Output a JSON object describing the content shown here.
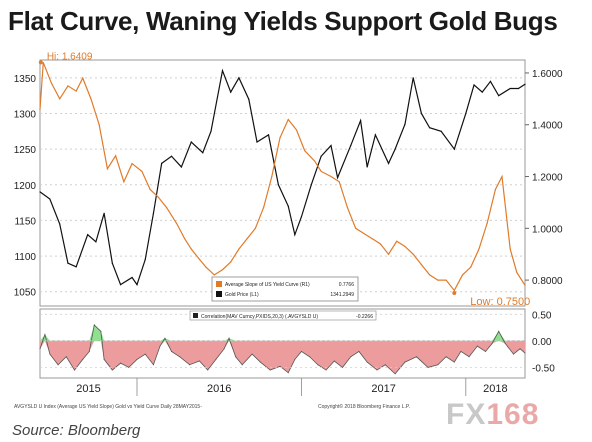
{
  "title": "Flat Curve, Waning Yields Support Gold Bugs",
  "source": "Source: Bloomberg",
  "footer_left": "AVGYSLD U Index (Average US Yield Slope) Gold vs Yield Curve  Daily 28MAY2015-",
  "footer_right": "Copyright© 2018 Bloomberg Finance L.P.",
  "watermark": {
    "prefix": "FX",
    "suffix": "168"
  },
  "colors": {
    "gold": "#111111",
    "slope": "#e07b2a",
    "corr_neg": "#ec9c9c",
    "corr_pos": "#8fe08f",
    "corr_line": "#555555",
    "grid": "#d0d0d0"
  },
  "chart_data": [
    {
      "type": "line",
      "xlim": [
        2015.41,
        2018.36
      ],
      "x_ticks": [
        {
          "x": 2015.0,
          "label": "2015"
        },
        {
          "x": 2016.0,
          "label": "2016"
        },
        {
          "x": 2017.0,
          "label": "2017"
        },
        {
          "x": 2018.0,
          "label": "2018"
        }
      ],
      "left_axis": {
        "range": [
          1030,
          1375
        ],
        "ticks": [
          1050,
          1100,
          1150,
          1200,
          1250,
          1300,
          1350
        ]
      },
      "right_axis": {
        "range": [
          0.7,
          1.65
        ],
        "ticks": [
          "0.8000",
          "1.0000",
          "1.2000",
          "1.4000",
          "1.6000"
        ]
      },
      "legend": {
        "placement": "bottom-center",
        "entries": [
          {
            "label": "Average Slope of US Yield Curve  (R1)",
            "value": "0.7766"
          },
          {
            "label": "Gold Price  (L1)",
            "value": "1341.2949"
          }
        ]
      },
      "series": [
        {
          "name": "Gold Price  (L1)",
          "axis": "left",
          "points": [
            [
              2015.41,
              1190
            ],
            [
              2015.47,
              1180
            ],
            [
              2015.53,
              1145
            ],
            [
              2015.58,
              1090
            ],
            [
              2015.63,
              1085
            ],
            [
              2015.7,
              1130
            ],
            [
              2015.75,
              1120
            ],
            [
              2015.8,
              1160
            ],
            [
              2015.85,
              1090
            ],
            [
              2015.9,
              1060
            ],
            [
              2015.97,
              1070
            ],
            [
              2016.0,
              1060
            ],
            [
              2016.05,
              1095
            ],
            [
              2016.1,
              1160
            ],
            [
              2016.15,
              1230
            ],
            [
              2016.21,
              1240
            ],
            [
              2016.27,
              1225
            ],
            [
              2016.33,
              1260
            ],
            [
              2016.4,
              1245
            ],
            [
              2016.45,
              1275
            ],
            [
              2016.52,
              1360
            ],
            [
              2016.57,
              1330
            ],
            [
              2016.62,
              1350
            ],
            [
              2016.68,
              1320
            ],
            [
              2016.73,
              1260
            ],
            [
              2016.8,
              1270
            ],
            [
              2016.86,
              1200
            ],
            [
              2016.92,
              1170
            ],
            [
              2016.96,
              1130
            ],
            [
              2017.0,
              1155
            ],
            [
              2017.06,
              1200
            ],
            [
              2017.12,
              1240
            ],
            [
              2017.18,
              1255
            ],
            [
              2017.22,
              1210
            ],
            [
              2017.3,
              1255
            ],
            [
              2017.36,
              1290
            ],
            [
              2017.4,
              1225
            ],
            [
              2017.45,
              1270
            ],
            [
              2017.53,
              1230
            ],
            [
              2017.57,
              1250
            ],
            [
              2017.63,
              1285
            ],
            [
              2017.68,
              1350
            ],
            [
              2017.73,
              1300
            ],
            [
              2017.78,
              1280
            ],
            [
              2017.85,
              1275
            ],
            [
              2017.93,
              1250
            ],
            [
              2018.0,
              1300
            ],
            [
              2018.05,
              1340
            ],
            [
              2018.1,
              1330
            ],
            [
              2018.15,
              1345
            ],
            [
              2018.2,
              1325
            ],
            [
              2018.27,
              1335
            ],
            [
              2018.32,
              1335
            ],
            [
              2018.36,
              1341
            ]
          ]
        },
        {
          "name": "Average Slope of US Yield Curve  (R1)",
          "axis": "right",
          "annotations": [
            {
              "label": "Hi: 1.6409",
              "x": 2015.415,
              "y": 1.6409
            },
            {
              "label": "Low: 0.7500",
              "x": 2017.93,
              "y": 0.75
            }
          ],
          "points": [
            [
              2015.41,
              1.46
            ],
            [
              2015.43,
              1.64
            ],
            [
              2015.48,
              1.56
            ],
            [
              2015.53,
              1.5
            ],
            [
              2015.58,
              1.55
            ],
            [
              2015.63,
              1.53
            ],
            [
              2015.67,
              1.58
            ],
            [
              2015.72,
              1.5
            ],
            [
              2015.77,
              1.4
            ],
            [
              2015.82,
              1.23
            ],
            [
              2015.87,
              1.28
            ],
            [
              2015.92,
              1.18
            ],
            [
              2015.97,
              1.25
            ],
            [
              2016.03,
              1.22
            ],
            [
              2016.08,
              1.15
            ],
            [
              2016.13,
              1.12
            ],
            [
              2016.18,
              1.08
            ],
            [
              2016.24,
              1.02
            ],
            [
              2016.29,
              0.96
            ],
            [
              2016.33,
              0.92
            ],
            [
              2016.38,
              0.88
            ],
            [
              2016.42,
              0.85
            ],
            [
              2016.47,
              0.82
            ],
            [
              2016.52,
              0.84
            ],
            [
              2016.57,
              0.87
            ],
            [
              2016.62,
              0.92
            ],
            [
              2016.67,
              0.96
            ],
            [
              2016.72,
              1.0
            ],
            [
              2016.77,
              1.08
            ],
            [
              2016.82,
              1.2
            ],
            [
              2016.87,
              1.35
            ],
            [
              2016.92,
              1.42
            ],
            [
              2016.97,
              1.38
            ],
            [
              2017.02,
              1.3
            ],
            [
              2017.08,
              1.26
            ],
            [
              2017.12,
              1.22
            ],
            [
              2017.18,
              1.2
            ],
            [
              2017.23,
              1.18
            ],
            [
              2017.28,
              1.08
            ],
            [
              2017.33,
              1.0
            ],
            [
              2017.38,
              0.98
            ],
            [
              2017.43,
              0.96
            ],
            [
              2017.48,
              0.94
            ],
            [
              2017.53,
              0.9
            ],
            [
              2017.58,
              0.95
            ],
            [
              2017.63,
              0.93
            ],
            [
              2017.68,
              0.9
            ],
            [
              2017.73,
              0.86
            ],
            [
              2017.78,
              0.82
            ],
            [
              2017.83,
              0.8
            ],
            [
              2017.88,
              0.8
            ],
            [
              2017.93,
              0.76
            ],
            [
              2017.98,
              0.82
            ],
            [
              2018.03,
              0.85
            ],
            [
              2018.08,
              0.92
            ],
            [
              2018.13,
              1.02
            ],
            [
              2018.18,
              1.15
            ],
            [
              2018.22,
              1.2
            ],
            [
              2018.27,
              0.92
            ],
            [
              2018.31,
              0.83
            ],
            [
              2018.36,
              0.78
            ]
          ]
        }
      ]
    },
    {
      "type": "area",
      "xlim": [
        2015.41,
        2018.36
      ],
      "right_axis": {
        "range": [
          -0.7,
          0.6
        ],
        "ticks": [
          "0.50",
          "0.00",
          "-0.50"
        ]
      },
      "legend": {
        "placement": "top-center",
        "entries": [
          {
            "label": "Correlation(MAV Curncy,PXIDS,20,3)  (.AVGYSLD U)",
            "value": "-0.2266"
          }
        ]
      },
      "series": [
        {
          "name": "Correlation(MAV Curncy,PXIDS,20,3)  (.AVGYSLD U)",
          "points": [
            [
              2015.41,
              -0.15
            ],
            [
              2015.44,
              0.12
            ],
            [
              2015.47,
              -0.25
            ],
            [
              2015.52,
              -0.45
            ],
            [
              2015.57,
              -0.3
            ],
            [
              2015.62,
              -0.55
            ],
            [
              2015.67,
              -0.35
            ],
            [
              2015.71,
              -0.2
            ],
            [
              2015.74,
              0.3
            ],
            [
              2015.78,
              0.18
            ],
            [
              2015.8,
              -0.35
            ],
            [
              2015.85,
              -0.55
            ],
            [
              2015.9,
              -0.42
            ],
            [
              2015.95,
              -0.5
            ],
            [
              2016.0,
              -0.35
            ],
            [
              2016.05,
              -0.25
            ],
            [
              2016.1,
              -0.45
            ],
            [
              2016.14,
              -0.1
            ],
            [
              2016.17,
              0.05
            ],
            [
              2016.21,
              -0.2
            ],
            [
              2016.26,
              -0.3
            ],
            [
              2016.32,
              -0.45
            ],
            [
              2016.38,
              -0.38
            ],
            [
              2016.43,
              -0.55
            ],
            [
              2016.48,
              -0.35
            ],
            [
              2016.53,
              -0.15
            ],
            [
              2016.56,
              0.05
            ],
            [
              2016.6,
              -0.3
            ],
            [
              2016.64,
              -0.45
            ],
            [
              2016.7,
              -0.25
            ],
            [
              2016.75,
              -0.4
            ],
            [
              2016.81,
              -0.55
            ],
            [
              2016.87,
              -0.48
            ],
            [
              2016.92,
              -0.6
            ],
            [
              2016.96,
              -0.35
            ],
            [
              2017.0,
              -0.2
            ],
            [
              2017.05,
              -0.3
            ],
            [
              2017.1,
              -0.45
            ],
            [
              2017.15,
              -0.55
            ],
            [
              2017.2,
              -0.38
            ],
            [
              2017.25,
              -0.5
            ],
            [
              2017.3,
              -0.3
            ],
            [
              2017.35,
              -0.2
            ],
            [
              2017.4,
              -0.4
            ],
            [
              2017.46,
              -0.55
            ],
            [
              2017.51,
              -0.45
            ],
            [
              2017.57,
              -0.62
            ],
            [
              2017.63,
              -0.4
            ],
            [
              2017.7,
              -0.3
            ],
            [
              2017.77,
              -0.5
            ],
            [
              2017.83,
              -0.45
            ],
            [
              2017.88,
              -0.3
            ],
            [
              2017.93,
              -0.4
            ],
            [
              2017.97,
              -0.2
            ],
            [
              2018.02,
              -0.3
            ],
            [
              2018.07,
              -0.1
            ],
            [
              2018.12,
              -0.2
            ],
            [
              2018.16,
              -0.05
            ],
            [
              2018.2,
              0.18
            ],
            [
              2018.24,
              -0.05
            ],
            [
              2018.29,
              -0.25
            ],
            [
              2018.33,
              -0.15
            ],
            [
              2018.36,
              -0.23
            ]
          ]
        }
      ]
    }
  ]
}
